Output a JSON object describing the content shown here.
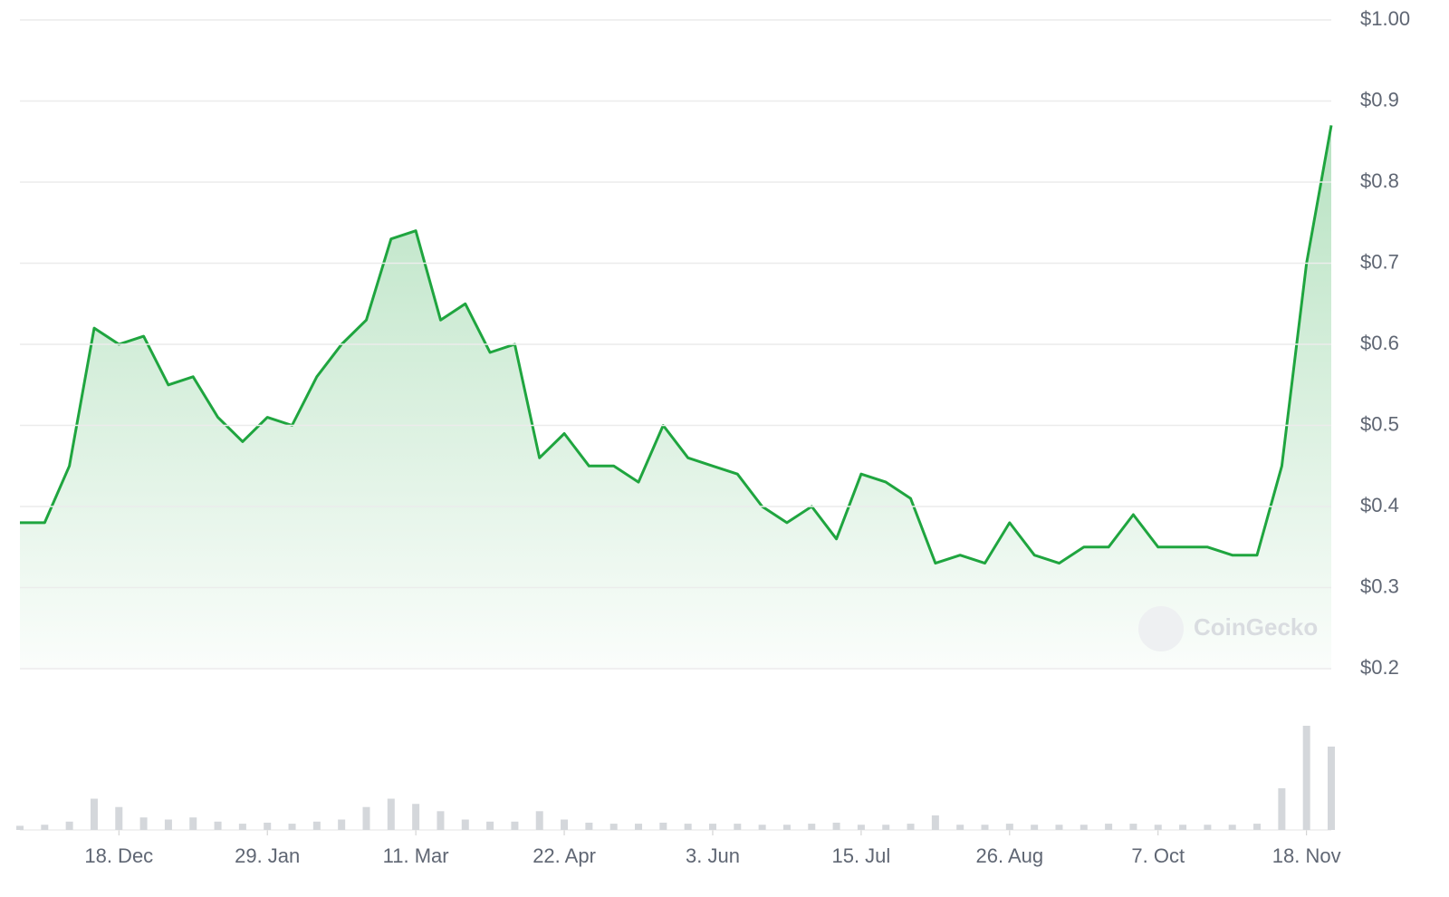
{
  "chart_data": {
    "type": "line",
    "watermark": "CoinGecko",
    "color": "#1fa53f",
    "categories": [
      null,
      null,
      null,
      null,
      "18. Dec",
      null,
      null,
      null,
      null,
      null,
      "29. Jan",
      null,
      null,
      null,
      null,
      null,
      "11. Mar",
      null,
      null,
      null,
      null,
      null,
      "22. Apr",
      null,
      null,
      null,
      null,
      null,
      "3. Jun",
      null,
      null,
      null,
      null,
      null,
      "15. Jul",
      null,
      null,
      null,
      null,
      null,
      "26. Aug",
      null,
      null,
      null,
      null,
      null,
      "7. Oct",
      null,
      null,
      null,
      null,
      null,
      "18. Nov",
      null
    ],
    "values": [
      0.38,
      0.38,
      0.45,
      0.62,
      0.6,
      0.61,
      0.55,
      0.56,
      0.51,
      0.48,
      0.51,
      0.5,
      0.56,
      0.6,
      0.63,
      0.73,
      0.74,
      0.63,
      0.65,
      0.59,
      0.6,
      0.46,
      0.49,
      0.45,
      0.45,
      0.43,
      0.5,
      0.46,
      0.45,
      0.44,
      0.4,
      0.38,
      0.4,
      0.36,
      0.44,
      0.43,
      0.41,
      0.33,
      0.34,
      0.33,
      0.38,
      0.34,
      0.33,
      0.35,
      0.35,
      0.39,
      0.35,
      0.35,
      0.35,
      0.34,
      0.34,
      0.45,
      0.7,
      0.87
    ],
    "volume": [
      4,
      5,
      8,
      30,
      22,
      12,
      10,
      12,
      8,
      6,
      7,
      6,
      8,
      10,
      22,
      30,
      25,
      18,
      10,
      8,
      8,
      18,
      10,
      7,
      6,
      6,
      7,
      6,
      6,
      6,
      5,
      5,
      6,
      7,
      5,
      5,
      6,
      14,
      5,
      5,
      6,
      5,
      5,
      5,
      6,
      6,
      5,
      5,
      5,
      5,
      6,
      40,
      100,
      80
    ],
    "ylim": [
      0.2,
      1.0
    ],
    "yticks": [
      {
        "value": 0.2,
        "label": "$0.2"
      },
      {
        "value": 0.3,
        "label": "$0.3"
      },
      {
        "value": 0.4,
        "label": "$0.4"
      },
      {
        "value": 0.5,
        "label": "$0.5"
      },
      {
        "value": 0.6,
        "label": "$0.6"
      },
      {
        "value": 0.7,
        "label": "$0.7"
      },
      {
        "value": 0.8,
        "label": "$0.8"
      },
      {
        "value": 0.9,
        "label": "$0.9"
      },
      {
        "value": 1.0,
        "label": "$1.00"
      }
    ],
    "grid": true
  }
}
